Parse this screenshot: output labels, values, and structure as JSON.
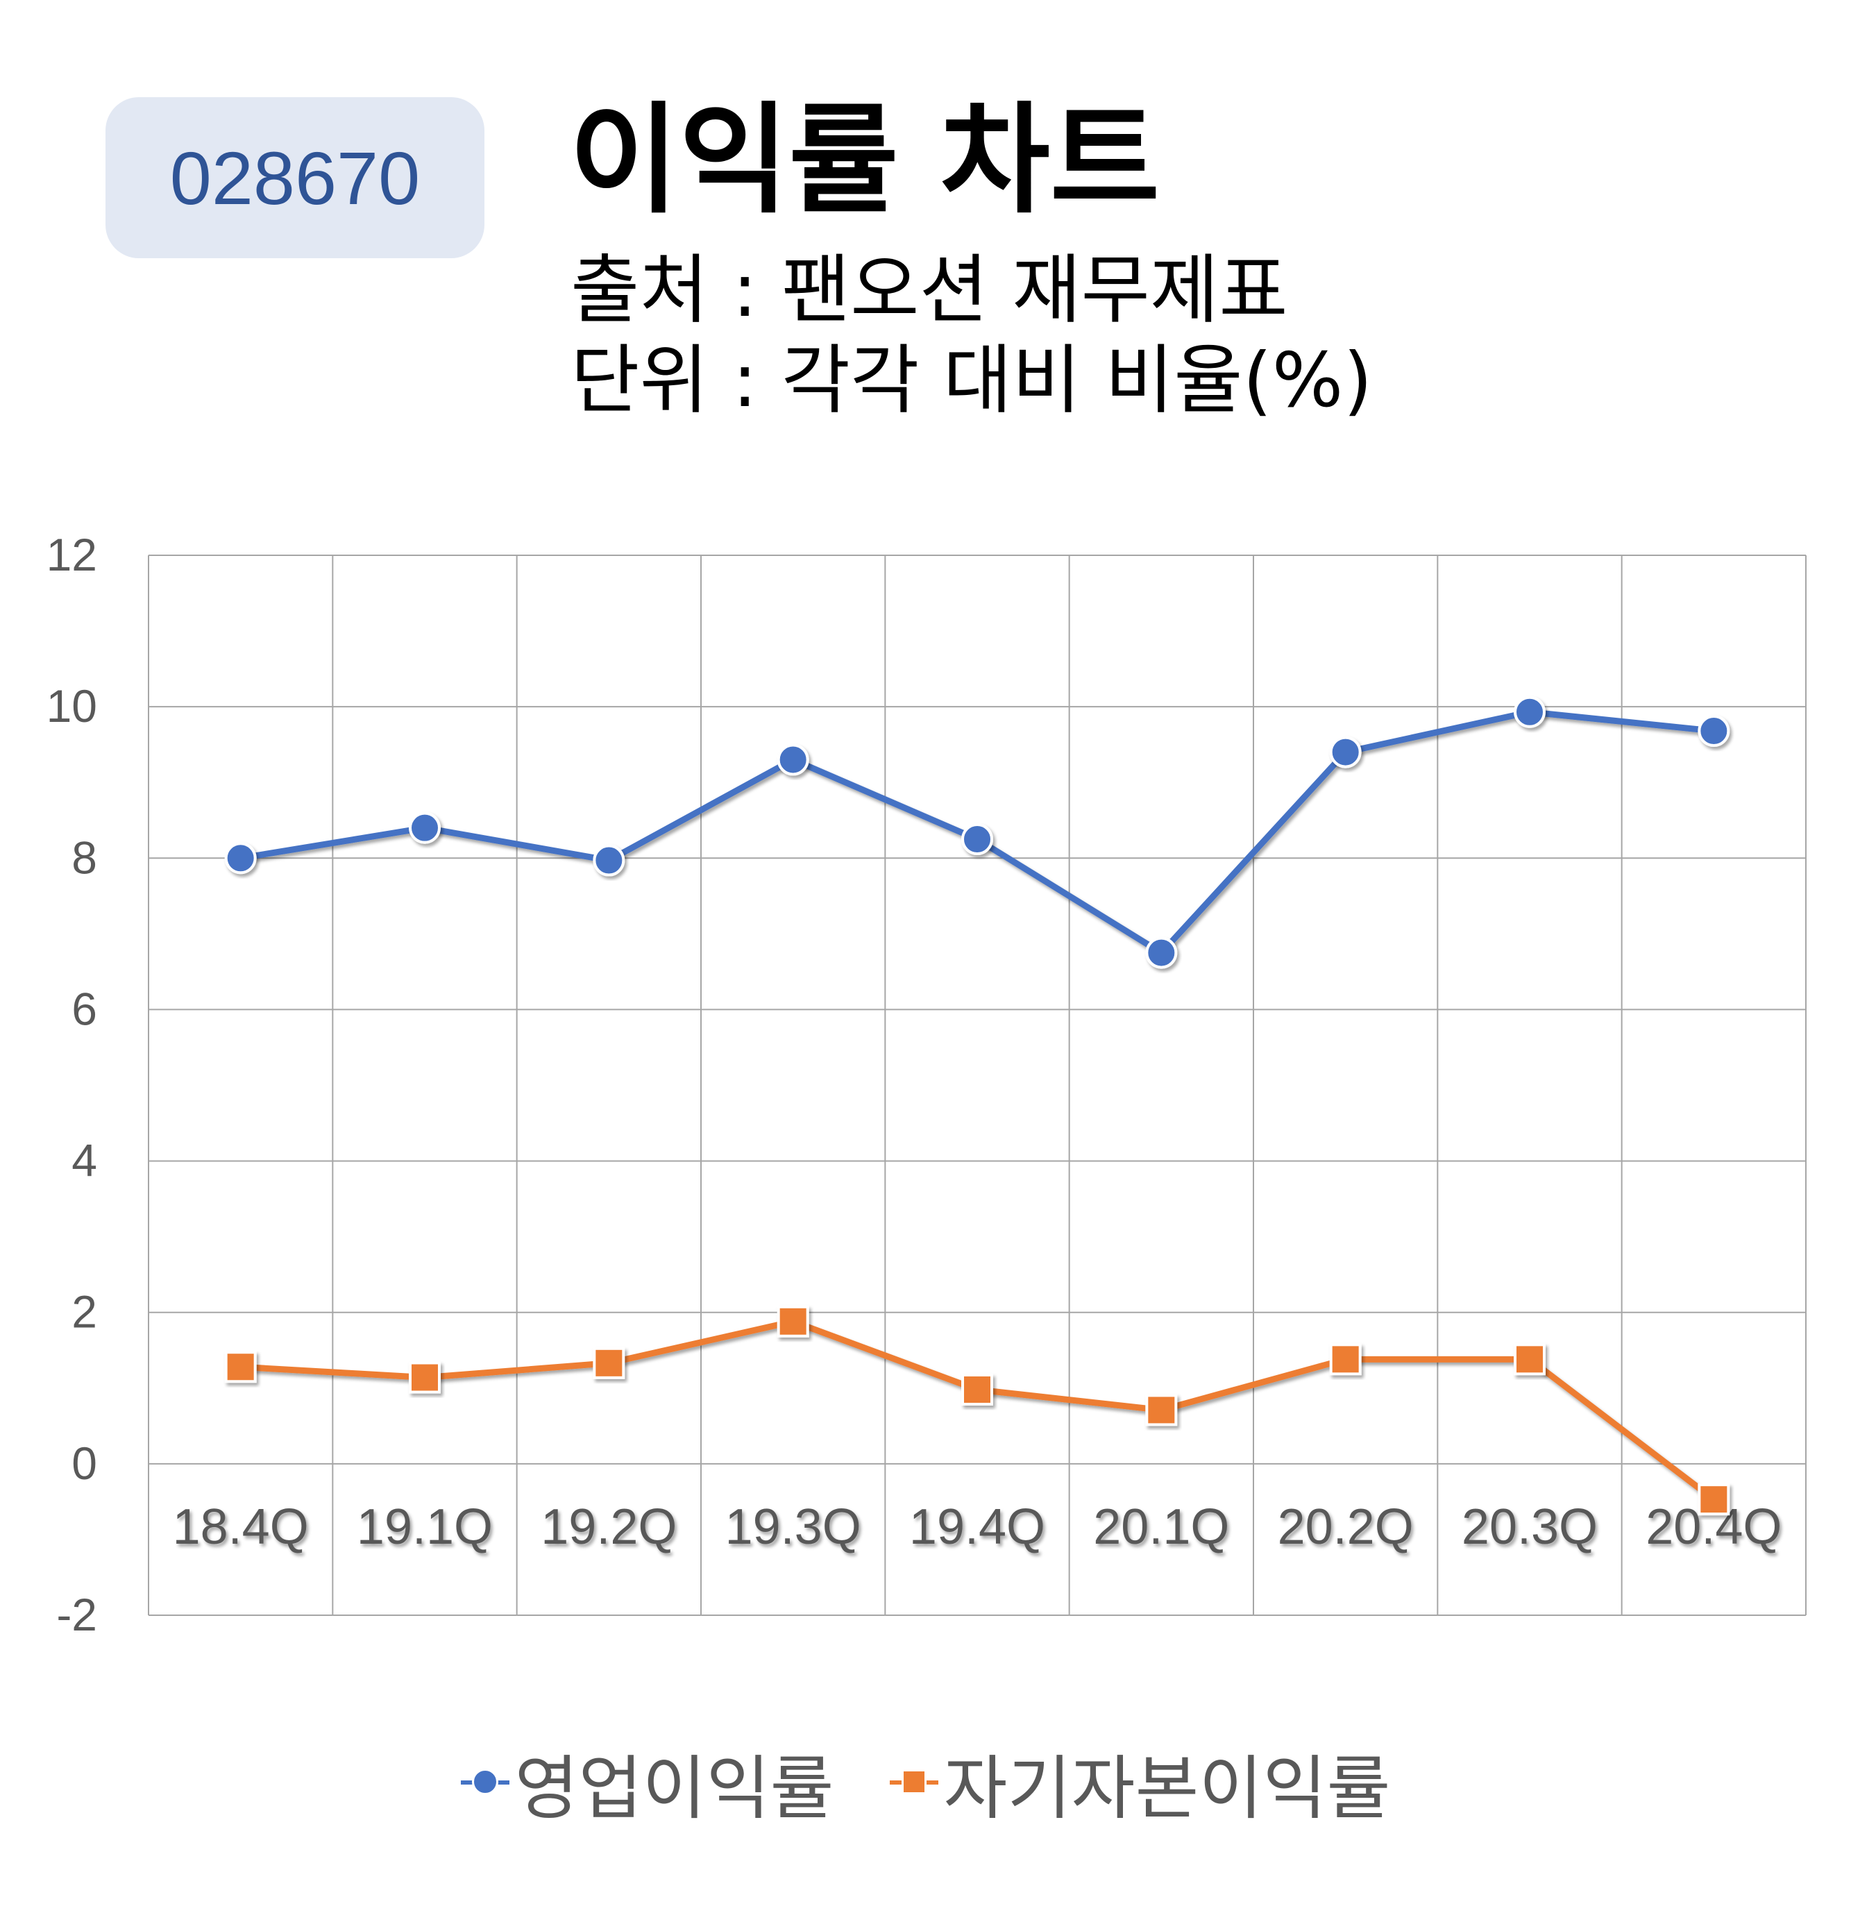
{
  "header": {
    "code": "028670",
    "title": "이익률 차트",
    "source": "출처 : 팬오션 재무제표",
    "unit": "단위 : 각각 대비 비율(%)"
  },
  "colors": {
    "badge_bg": "#e2e8f3",
    "badge_text": "#2f5496",
    "series_blue": "#4472c4",
    "series_orange": "#ed7d31",
    "grid": "#a6a6a6",
    "axis_text": "#595959"
  },
  "chart_data": {
    "type": "line",
    "categories": [
      "18.4Q",
      "19.1Q",
      "19.2Q",
      "19.3Q",
      "19.4Q",
      "20.1Q",
      "20.2Q",
      "20.3Q",
      "20.4Q"
    ],
    "series": [
      {
        "name": "영업이익률",
        "marker": "circle",
        "color": "#4472c4",
        "values": [
          8.0,
          8.4,
          7.97,
          9.3,
          8.25,
          6.75,
          9.4,
          9.93,
          9.68
        ]
      },
      {
        "name": "자기자본이익률",
        "marker": "square",
        "color": "#ed7d31",
        "values": [
          1.28,
          1.14,
          1.33,
          1.88,
          0.98,
          0.71,
          1.38,
          1.38,
          -0.47
        ]
      }
    ],
    "y_ticks": [
      "12",
      "10",
      "8",
      "6",
      "4",
      "2",
      "0",
      "-2"
    ],
    "ylim": [
      -2,
      12
    ],
    "y_step": 2,
    "grid": true,
    "category_labels_position": "below zero line",
    "legend_position": "bottom"
  }
}
